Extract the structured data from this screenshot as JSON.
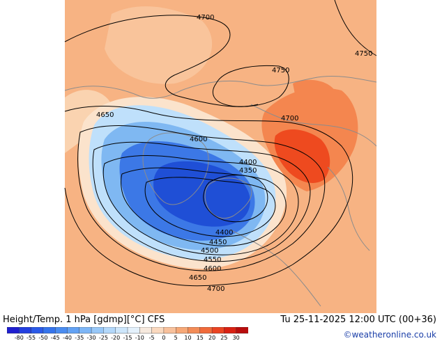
{
  "map": {
    "contour_labels": [
      "4700",
      "4750",
      "4750",
      "4650",
      "4700",
      "4600",
      "4400",
      "4350",
      "4400",
      "4450",
      "4500",
      "4550",
      "4600",
      "4650",
      "4700"
    ],
    "colors": {
      "ocean_frame": "#ffffff",
      "warm_bg": "#f7b383",
      "warm_light": "#fad3b0",
      "warm_strong": "#f4864f",
      "warm_hot": "#ee4a1f",
      "cold_light": "#bfe0fb",
      "cold_mid": "#7fb8f2",
      "cold_strong": "#3c78e6",
      "cold_deep": "#1f4fd6",
      "contour": "#000000",
      "coast": "#8c8c8c"
    }
  },
  "footer": {
    "title": "Height/Temp. 1 hPa [gdmp][°C] CFS",
    "datetime": "Tu 25-11-2025 12:00 UTC (00+36)",
    "credit": "©weatheronline.co.uk"
  },
  "colorbar": {
    "tick_labels": [
      "-80",
      "-55",
      "-50",
      "-45",
      "-40",
      "-35",
      "-30",
      "-25",
      "-20",
      "-15",
      "-10",
      "-5",
      "0",
      "5",
      "10",
      "15",
      "20",
      "25",
      "30"
    ],
    "colors": [
      "#1f1fd0",
      "#2340e0",
      "#2b5ae8",
      "#3574ec",
      "#4a8cf0",
      "#63a2f4",
      "#7db6f6",
      "#98c8f8",
      "#b3d8fa",
      "#cde6fb",
      "#e4f1fc",
      "#f6e9de",
      "#fad9bf",
      "#f8c19c",
      "#f6a877",
      "#f38c57",
      "#f06a3a",
      "#ea4422",
      "#d92113",
      "#b80d0d"
    ]
  }
}
